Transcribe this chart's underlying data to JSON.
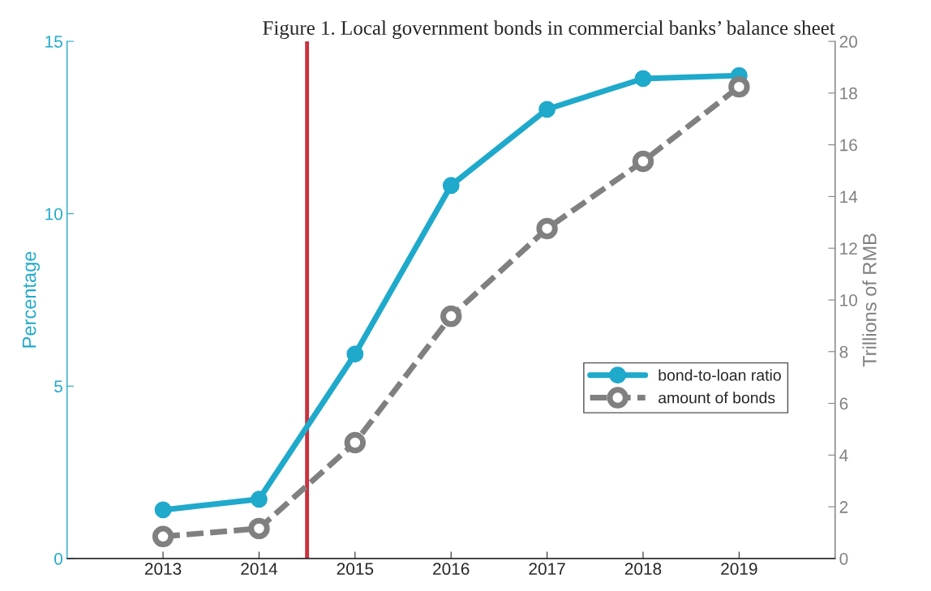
{
  "chart_data": {
    "type": "line",
    "title": "Figure 1. Local government bonds in commercial banks’ balance sheet",
    "ylabel": "Percentage",
    "y2label": "Trillions of RMB",
    "x": [
      2013,
      2014,
      2015,
      2016,
      2017,
      2018,
      2019
    ],
    "series": [
      {
        "name": "bond-to-loan ratio",
        "color": "#1fa9cb",
        "values": [
          1.41,
          1.72,
          5.93,
          10.82,
          13.03,
          13.92,
          14.01
        ],
        "line_style": "solid"
      },
      {
        "name": "amount of bonds",
        "color": "#808080",
        "values": [
          0.85,
          1.16,
          4.48,
          9.37,
          12.76,
          15.36,
          18.24
        ],
        "axis": "y2",
        "line_style": "dashed"
      }
    ],
    "xlim": [
      2012,
      2020
    ],
    "xticks": [
      2013,
      2014,
      2015,
      2016,
      2017,
      2018,
      2019
    ],
    "ylim": [
      0,
      15
    ],
    "yticks": [
      0,
      5,
      10,
      15
    ],
    "y2lim": [
      0,
      20
    ],
    "y2ticks": [
      0,
      2,
      4,
      6,
      8,
      10,
      12,
      14,
      16,
      18,
      20
    ],
    "ref_lines": [
      {
        "axis": "x",
        "value": 2014.5,
        "color": "#c8323f"
      }
    ],
    "marker": "circle",
    "grid": false,
    "legend": "center right"
  }
}
